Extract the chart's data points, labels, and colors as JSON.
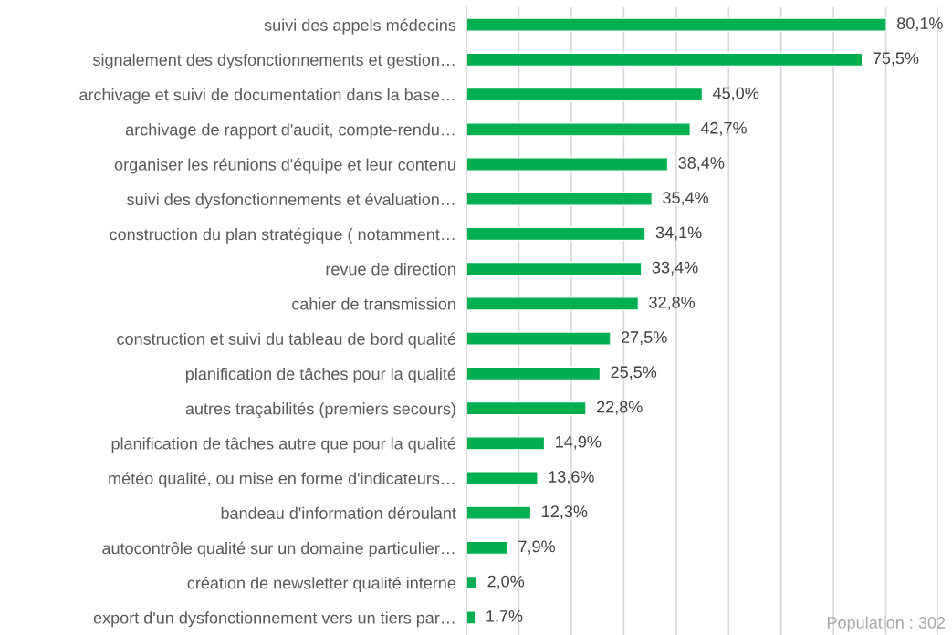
{
  "chart_data": {
    "type": "bar",
    "orientation": "horizontal",
    "categories": [
      "suivi des appels médecins",
      "signalement des dysfonctionnements et gestion…",
      "archivage et suivi de documentation dans la base…",
      "archivage de rapport d'audit, compte-rendu…",
      "organiser les réunions d'équipe et leur contenu",
      "suivi des dysfonctionnements et évaluation…",
      "construction du plan stratégique ( notamment…",
      "revue de direction",
      "cahier de transmission",
      "construction et suivi du tableau de bord qualité",
      "planification de tâches pour la qualité",
      "autres traçabilités (premiers secours)",
      "planification de tâches autre que pour la qualité",
      "météo qualité, ou mise en forme d'indicateurs…",
      "bandeau d'information déroulant",
      "autocontrôle qualité sur un domaine particulier…",
      "création de newsletter qualité interne",
      "export d'un dysfonctionnement vers un tiers par…"
    ],
    "values": [
      80.1,
      75.5,
      45.0,
      42.7,
      38.4,
      35.4,
      34.1,
      33.4,
      32.8,
      27.5,
      25.5,
      22.8,
      14.9,
      13.6,
      12.3,
      7.9,
      2.0,
      1.7
    ],
    "value_labels": [
      "80,1%",
      "75,5%",
      "45,0%",
      "42,7%",
      "38,4%",
      "35,4%",
      "34,1%",
      "33,4%",
      "32,8%",
      "27,5%",
      "25,5%",
      "22,8%",
      "14,9%",
      "13,6%",
      "12,3%",
      "7,9%",
      "2,0%",
      "1,7%"
    ],
    "color": "#00b050",
    "xlim": [
      0,
      90
    ],
    "xticks": [
      {
        "value": 0,
        "label": null
      },
      {
        "value": 10,
        "label": null
      },
      {
        "value": 20,
        "label": null
      },
      {
        "value": 30,
        "label": null
      },
      {
        "value": 40,
        "label": null
      },
      {
        "value": 50,
        "label": null
      },
      {
        "value": 60,
        "label": null
      },
      {
        "value": 70,
        "label": null
      },
      {
        "value": 80,
        "label": null
      },
      {
        "value": 90,
        "label": null
      }
    ],
    "grid": "x",
    "tick_labels": "y",
    "annotations": [
      "Population : 302"
    ]
  }
}
